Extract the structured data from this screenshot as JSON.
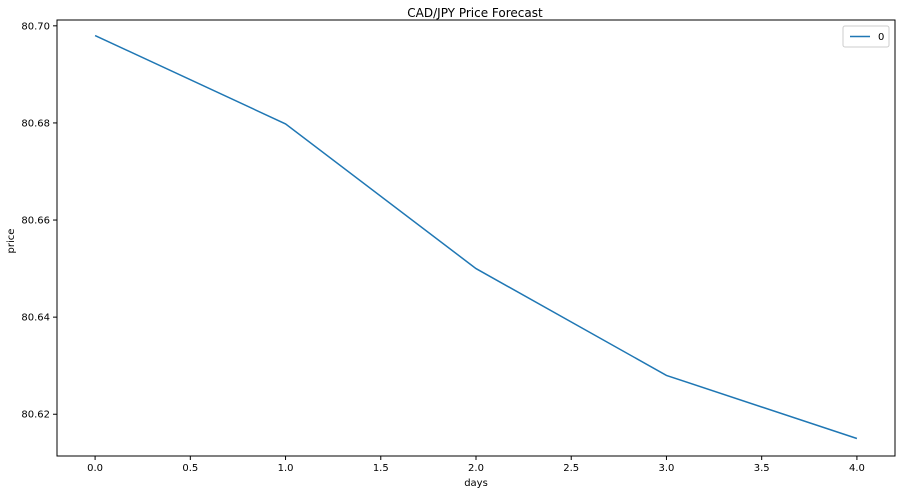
{
  "chart_data": {
    "type": "line",
    "title": "CAD/JPY Price Forecast",
    "xlabel": "days",
    "ylabel": "price",
    "xlim": [
      -0.2,
      4.2
    ],
    "ylim": [
      80.6114,
      80.7012
    ],
    "x": [
      0.0,
      1.0,
      2.0,
      3.0,
      4.0
    ],
    "x_tick_labels": [
      "0.0",
      "0.5",
      "1.0",
      "1.5",
      "2.0",
      "2.5",
      "3.0",
      "3.5",
      "4.0"
    ],
    "x_ticks": [
      0.0,
      0.5,
      1.0,
      1.5,
      2.0,
      2.5,
      3.0,
      3.5,
      4.0
    ],
    "y_tick_labels": [
      "80.62",
      "80.64",
      "80.66",
      "80.68",
      "80.70"
    ],
    "y_ticks": [
      80.62,
      80.64,
      80.66,
      80.68,
      80.7
    ],
    "series": [
      {
        "name": "0",
        "values": [
          80.698,
          80.6798,
          80.65,
          80.628,
          80.615
        ],
        "color": "#1f77b4"
      }
    ],
    "legend": {
      "position": "top-right"
    },
    "grid": false
  }
}
